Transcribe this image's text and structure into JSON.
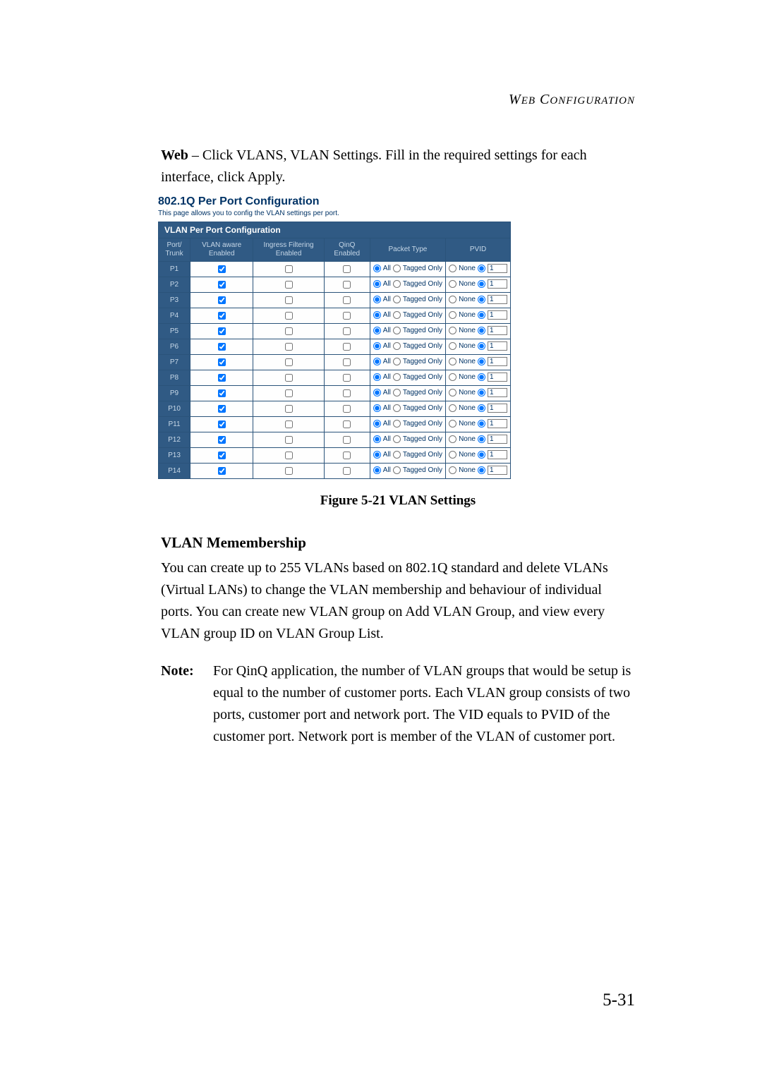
{
  "header": {
    "running": "Web Configuration"
  },
  "intro": {
    "lead": "Web",
    "rest": " – Click VLANS, VLAN Settings. Fill in the required settings for each interface, click Apply."
  },
  "config": {
    "title": "802.1Q Per Port Configuration",
    "subtitle": "This page allows you to config the VLAN settings per port.",
    "sectionHeader": "VLAN Per Port Configuration",
    "columns": {
      "port": "Port/ Trunk",
      "vlanAware": "VLAN aware Enabled",
      "ingress": "Ingress Filtering Enabled",
      "qinq": "QinQ Enabled",
      "packetType": "Packet Type",
      "pvid": "PVID"
    },
    "radioLabels": {
      "all": "All",
      "tagged": "Tagged Only",
      "none": "None"
    },
    "rows": [
      {
        "port": "P1",
        "vlan": true,
        "ingress": false,
        "qinq": false,
        "pvid": "1"
      },
      {
        "port": "P2",
        "vlan": true,
        "ingress": false,
        "qinq": false,
        "pvid": "1"
      },
      {
        "port": "P3",
        "vlan": true,
        "ingress": false,
        "qinq": false,
        "pvid": "1"
      },
      {
        "port": "P4",
        "vlan": true,
        "ingress": false,
        "qinq": false,
        "pvid": "1"
      },
      {
        "port": "P5",
        "vlan": true,
        "ingress": false,
        "qinq": false,
        "pvid": "1"
      },
      {
        "port": "P6",
        "vlan": true,
        "ingress": false,
        "qinq": false,
        "pvid": "1"
      },
      {
        "port": "P7",
        "vlan": true,
        "ingress": false,
        "qinq": false,
        "pvid": "1"
      },
      {
        "port": "P8",
        "vlan": true,
        "ingress": false,
        "qinq": false,
        "pvid": "1"
      },
      {
        "port": "P9",
        "vlan": true,
        "ingress": false,
        "qinq": false,
        "pvid": "1"
      },
      {
        "port": "P10",
        "vlan": true,
        "ingress": false,
        "qinq": false,
        "pvid": "1"
      },
      {
        "port": "P11",
        "vlan": true,
        "ingress": false,
        "qinq": false,
        "pvid": "1"
      },
      {
        "port": "P12",
        "vlan": true,
        "ingress": false,
        "qinq": false,
        "pvid": "1"
      },
      {
        "port": "P13",
        "vlan": true,
        "ingress": false,
        "qinq": false,
        "pvid": "1"
      },
      {
        "port": "P14",
        "vlan": true,
        "ingress": false,
        "qinq": false,
        "pvid": "1"
      }
    ]
  },
  "figure": {
    "caption": "Figure 5-21  VLAN Settings"
  },
  "membership": {
    "heading": "VLAN Memembership",
    "body": "You can create up to 255 VLANs based on 802.1Q standard and delete VLANs (Virtual LANs) to change the VLAN membership and behaviour of individual ports. You can create new VLAN group on Add VLAN Group, and view every VLAN group ID on VLAN Group List."
  },
  "note": {
    "label": "Note:",
    "body": "For QinQ application, the number of VLAN groups that would be setup is equal to the number of customer ports. Each VLAN group consists of two ports, customer port and network port. The VID equals to PVID of the customer port. Network port is member of the VLAN of customer port."
  },
  "pageNumber": "5-31"
}
